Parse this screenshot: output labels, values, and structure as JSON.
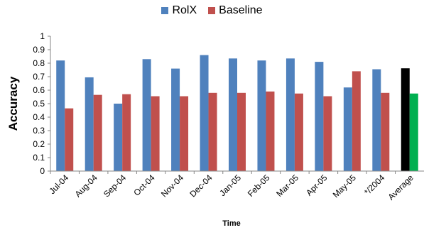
{
  "chart_data": {
    "type": "bar",
    "xlabel": "Time",
    "ylabel": "Accuracy",
    "ylim": [
      0,
      1
    ],
    "yticks": [
      "0",
      "0.1",
      "0.2",
      "0.3",
      "0.4",
      "0.5",
      "0.6",
      "0.7",
      "0.8",
      "0.9",
      "1"
    ],
    "categories": [
      "Jul-04",
      "Aug-04",
      "Sep-04",
      "Oct-04",
      "Nov-04",
      "Dec-04",
      "Jan-05",
      "Feb-05",
      "Mar-05",
      "Apr-05",
      "May-05",
      "*/2004",
      "Average"
    ],
    "series": [
      {
        "name": "RolX",
        "color": "#4F81BD",
        "values": [
          0.82,
          0.695,
          0.5,
          0.83,
          0.76,
          0.86,
          0.835,
          0.82,
          0.835,
          0.81,
          0.62,
          0.755,
          0.762
        ]
      },
      {
        "name": "Baseline",
        "color": "#C0504D",
        "values": [
          0.465,
          0.565,
          0.57,
          0.555,
          0.555,
          0.58,
          0.58,
          0.59,
          0.575,
          0.555,
          0.74,
          0.58,
          0.575
        ]
      }
    ],
    "highlight": {
      "category": "Average",
      "colors": [
        "#000000",
        "#00B050"
      ]
    },
    "legend_position": "top-center",
    "grid": false
  }
}
